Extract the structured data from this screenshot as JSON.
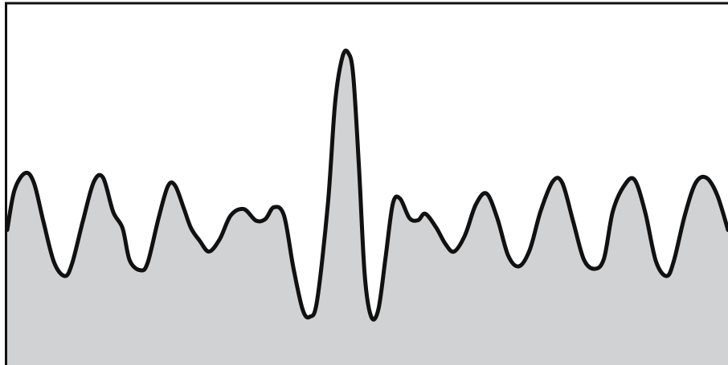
{
  "chart_data": {
    "type": "area",
    "title": "",
    "xlabel": "",
    "ylabel": "",
    "grid": false,
    "legend": "none",
    "xlim": [
      0,
      100
    ],
    "ylim": [
      0,
      100
    ],
    "colors": {
      "fill": "#d1d2d4",
      "line": "#111111",
      "frame": "#111111",
      "background": "#ffffff"
    },
    "series": [
      {
        "x": [
          0,
          1,
          2.5,
          3.7,
          5,
          6.5,
          8,
          9,
          10.5,
          12,
          13.3,
          14.7,
          16,
          17,
          18.5,
          19.5,
          21,
          22.3,
          23.3,
          24.5,
          25.5,
          26.7,
          28,
          29.5,
          31,
          32.8,
          34.5,
          35.8,
          37,
          38.4,
          39.7,
          41,
          42,
          43,
          44.5,
          45.5,
          46.5,
          47.3,
          48,
          48.8,
          49.6,
          50.5,
          51.5,
          52.5,
          53.5,
          54.5,
          55.8,
          57,
          58,
          59.5,
          60.8,
          62,
          63.5,
          65,
          66.5,
          68,
          69.5,
          71,
          72.5,
          74,
          75.7,
          77,
          78.5,
          80,
          81.5,
          82.8,
          84,
          85.5,
          87,
          88.5,
          90,
          91.5,
          92.5,
          94,
          95.5,
          97,
          98.5,
          100
        ],
        "y": [
          37.5,
          48.5,
          53.3,
          50.6,
          40,
          28.5,
          24.7,
          28.2,
          40,
          50.8,
          52,
          42.5,
          38,
          29,
          26.3,
          28.5,
          40.8,
          49.7,
          49.8,
          43.5,
          38,
          34.5,
          31.5,
          35,
          41.5,
          43.3,
          40.1,
          40.5,
          43.8,
          41.5,
          27,
          15.3,
          13.4,
          18,
          45,
          73,
          85.5,
          86.7,
          80.5,
          55,
          25,
          13.4,
          15.5,
          30,
          44.8,
          46.2,
          40.8,
          40.2,
          42,
          38.2,
          33.6,
          31.5,
          36,
          44.5,
          47.6,
          40.7,
          30.4,
          27.4,
          32,
          42.7,
          51,
          50.6,
          40,
          29.3,
          26.7,
          29.6,
          42.5,
          49.5,
          51.5,
          42.5,
          28.8,
          24.7,
          29,
          41.5,
          50.5,
          52,
          47.2,
          37.5
        ]
      }
    ]
  }
}
